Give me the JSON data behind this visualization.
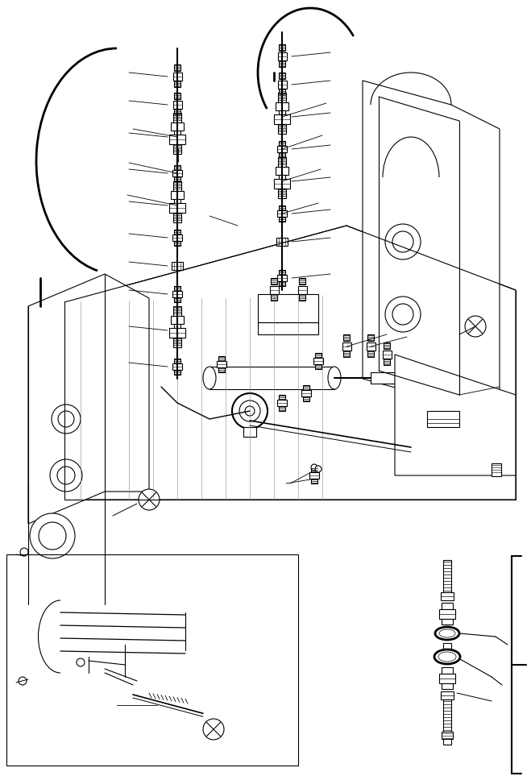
{
  "bg_color": "#ffffff",
  "line_color": "#000000",
  "lw": 0.8,
  "fig_width": 6.59,
  "fig_height": 9.63,
  "dpi": 100
}
